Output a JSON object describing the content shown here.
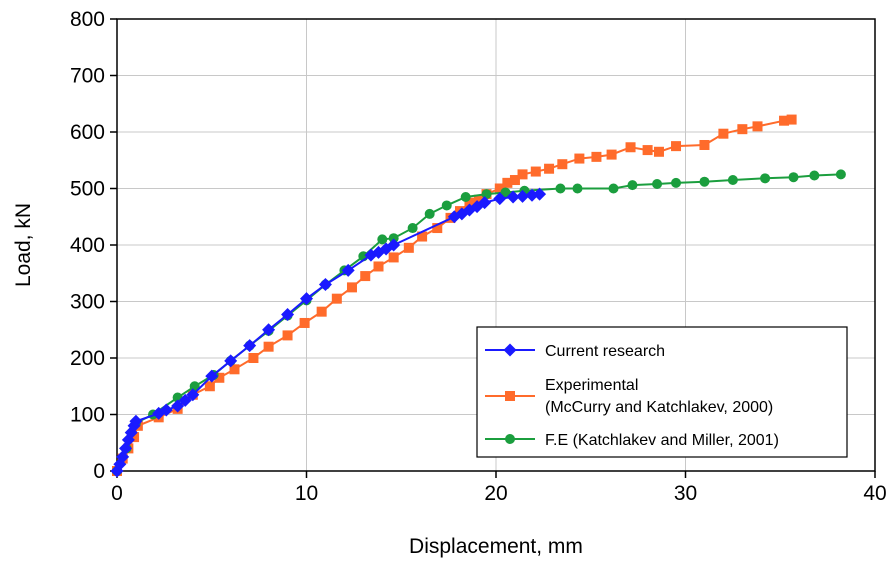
{
  "chart_data": {
    "type": "line",
    "title": "",
    "xlabel": "Displacement, mm",
    "ylabel": "Load, kN",
    "xlim": [
      0,
      40
    ],
    "ylim": [
      0,
      800
    ],
    "xticks": [
      0,
      10,
      20,
      30,
      40
    ],
    "yticks": [
      0,
      100,
      200,
      300,
      400,
      500,
      600,
      700,
      800
    ],
    "grid": true,
    "legend_position": "lower-right",
    "series": [
      {
        "name": "Current research",
        "color": "#1a1aff",
        "marker": "diamond",
        "x": [
          0.0,
          0.15,
          0.3,
          0.45,
          0.6,
          0.75,
          0.9,
          1.0,
          2.2,
          2.6,
          3.2,
          3.6,
          4.0,
          5.0,
          6.0,
          7.0,
          8.0,
          9.0,
          10.0,
          11.0,
          12.2,
          13.4,
          13.8,
          14.2,
          14.6,
          17.8,
          18.2,
          18.6,
          19.0,
          19.4,
          20.2,
          20.9,
          21.4,
          21.9,
          22.3
        ],
        "y": [
          0,
          12,
          25,
          40,
          55,
          68,
          80,
          88,
          102,
          108,
          115,
          125,
          135,
          168,
          195,
          222,
          250,
          277,
          305,
          330,
          355,
          382,
          387,
          393,
          400,
          450,
          455,
          462,
          468,
          475,
          482,
          485,
          486,
          488,
          490
        ]
      },
      {
        "name": "Experimental\n(McCurry and Katchlakev, 2000)",
        "color": "#ff6b2b",
        "marker": "square",
        "x": [
          0.0,
          0.3,
          0.6,
          0.9,
          1.1,
          2.2,
          3.2,
          4.0,
          4.9,
          5.4,
          6.2,
          7.2,
          8.0,
          9.0,
          9.9,
          10.8,
          11.6,
          12.4,
          13.1,
          13.8,
          14.6,
          15.4,
          16.1,
          16.9,
          17.6,
          18.1,
          18.6,
          19.1,
          19.5,
          20.2,
          20.6,
          21.0,
          21.4,
          22.1,
          22.8,
          23.5,
          24.4,
          25.3,
          26.1,
          27.1,
          28.0,
          28.6,
          29.5,
          31.0,
          32.0,
          33.0,
          33.8,
          35.2,
          35.6
        ],
        "y": [
          0,
          22,
          40,
          60,
          80,
          95,
          110,
          135,
          150,
          165,
          180,
          200,
          220,
          240,
          262,
          282,
          305,
          325,
          345,
          362,
          378,
          395,
          415,
          430,
          448,
          460,
          475,
          480,
          490,
          500,
          510,
          515,
          525,
          530,
          535,
          543,
          553,
          556,
          560,
          573,
          568,
          565,
          575,
          577,
          597,
          605,
          610,
          620,
          622
        ]
      },
      {
        "name": "F.E (Katchlakev and Miller, 2001)",
        "color": "#1b9e3e",
        "marker": "circle",
        "x": [
          0.0,
          0.5,
          1.0,
          1.9,
          3.2,
          4.1,
          5.1,
          6.0,
          7.0,
          8.0,
          9.0,
          10.0,
          11.0,
          12.0,
          13.0,
          14.0,
          14.6,
          15.6,
          16.5,
          17.4,
          18.4,
          19.5,
          20.5,
          21.5,
          23.4,
          24.3,
          26.2,
          27.2,
          28.5,
          29.5,
          31.0,
          32.5,
          34.2,
          35.7,
          36.8,
          38.2
        ],
        "y": [
          0,
          40,
          85,
          100,
          130,
          150,
          170,
          195,
          222,
          248,
          275,
          302,
          330,
          355,
          380,
          410,
          412,
          430,
          455,
          470,
          485,
          490,
          493,
          496,
          500,
          500,
          500,
          506,
          508,
          510,
          512,
          515,
          518,
          520,
          523,
          525
        ]
      }
    ]
  }
}
